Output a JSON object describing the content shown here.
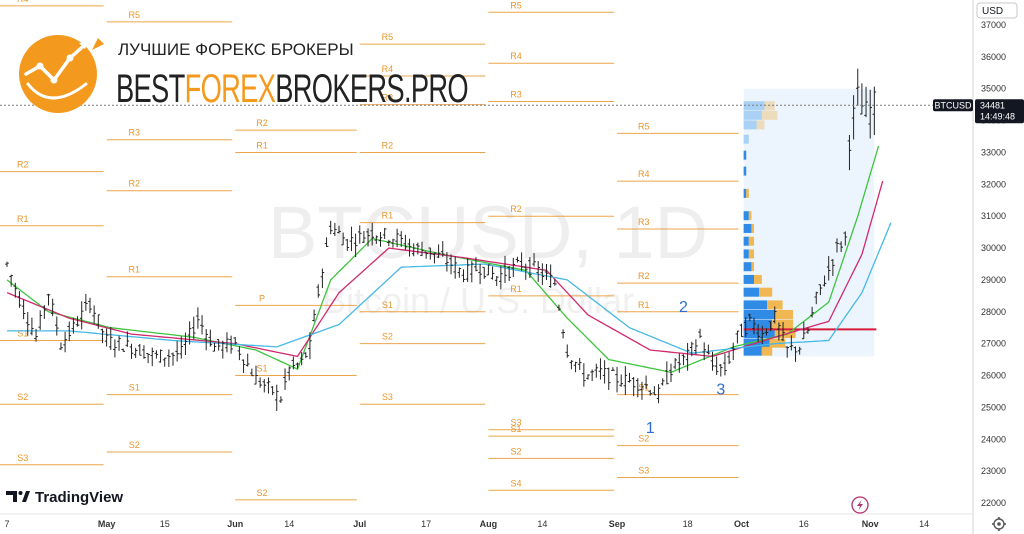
{
  "chart_data": {
    "type": "candlestick",
    "symbol": "BTCUSD",
    "interval": "1D",
    "description": "Bitcoin / U.S. Dollar",
    "currency": "USD",
    "ylim": [
      21500,
      37700
    ],
    "y_ticks": [
      22000,
      23000,
      24000,
      25000,
      26000,
      27000,
      28000,
      29000,
      30000,
      31000,
      32000,
      33000,
      34000,
      35000,
      36000,
      37000
    ],
    "x_labels": [
      {
        "label": "7",
        "day": 0,
        "bold": false
      },
      {
        "label": "May",
        "day": 24,
        "bold": true
      },
      {
        "label": "15",
        "day": 38,
        "bold": false
      },
      {
        "label": "Jun",
        "day": 55,
        "bold": true
      },
      {
        "label": "14",
        "day": 68,
        "bold": false
      },
      {
        "label": "Jul",
        "day": 85,
        "bold": true
      },
      {
        "label": "17",
        "day": 101,
        "bold": false
      },
      {
        "label": "Aug",
        "day": 116,
        "bold": true
      },
      {
        "label": "14",
        "day": 129,
        "bold": false
      },
      {
        "label": "Sep",
        "day": 147,
        "bold": true
      },
      {
        "label": "18",
        "day": 164,
        "bold": false
      },
      {
        "label": "Oct",
        "day": 177,
        "bold": true
      },
      {
        "label": "16",
        "day": 192,
        "bold": false
      },
      {
        "label": "Nov",
        "day": 208,
        "bold": true
      },
      {
        "label": "14",
        "day": 221,
        "bold": false
      }
    ],
    "price_path": [
      [
        0,
        29500
      ],
      [
        3,
        28400
      ],
      [
        7,
        27200
      ],
      [
        10,
        28600
      ],
      [
        13,
        27000
      ],
      [
        16,
        27500
      ],
      [
        20,
        28300
      ],
      [
        24,
        27100
      ],
      [
        30,
        26900
      ],
      [
        36,
        26600
      ],
      [
        42,
        26700
      ],
      [
        46,
        27800
      ],
      [
        50,
        26900
      ],
      [
        55,
        27000
      ],
      [
        60,
        25900
      ],
      [
        63,
        25600
      ],
      [
        66,
        25300
      ],
      [
        68,
        26200
      ],
      [
        71,
        26400
      ],
      [
        73,
        26900
      ],
      [
        75,
        28600
      ],
      [
        78,
        30700
      ],
      [
        82,
        30200
      ],
      [
        88,
        30500
      ],
      [
        94,
        30300
      ],
      [
        98,
        30000
      ],
      [
        102,
        29900
      ],
      [
        106,
        29600
      ],
      [
        110,
        29200
      ],
      [
        114,
        29400
      ],
      [
        118,
        29100
      ],
      [
        124,
        29500
      ],
      [
        128,
        29300
      ],
      [
        132,
        28900
      ],
      [
        135,
        26800
      ],
      [
        139,
        26000
      ],
      [
        143,
        26100
      ],
      [
        147,
        25900
      ],
      [
        151,
        25800
      ],
      [
        154,
        25700
      ],
      [
        157,
        25400
      ],
      [
        160,
        26200
      ],
      [
        164,
        26600
      ],
      [
        167,
        27200
      ],
      [
        170,
        26300
      ],
      [
        173,
        26200
      ],
      [
        176,
        27200
      ],
      [
        179,
        27700
      ],
      [
        182,
        27300
      ],
      [
        185,
        27800
      ],
      [
        188,
        26800
      ],
      [
        191,
        26900
      ],
      [
        193,
        27400
      ],
      [
        195,
        28400
      ],
      [
        198,
        29300
      ],
      [
        200,
        30000
      ],
      [
        202,
        30300
      ],
      [
        203,
        33500
      ],
      [
        205,
        34700
      ],
      [
        207,
        34200
      ],
      [
        209,
        34480
      ]
    ],
    "last_price": "34481",
    "countdown": "14:49:48",
    "wave_labels": [
      {
        "label": "1",
        "day": 155,
        "price": 24200
      },
      {
        "label": "2",
        "day": 163,
        "price": 28000
      },
      {
        "label": "3",
        "day": 172,
        "price": 25400
      }
    ],
    "pivot_labels": [
      "S4",
      "S3",
      "S2",
      "S1",
      "P",
      "R1",
      "R2",
      "R3",
      "R4",
      "R5"
    ],
    "pivots": [
      {
        "from": -2,
        "to": 24,
        "levels": [
          [
            "S3",
            23200
          ],
          [
            "S2",
            25100
          ],
          [
            "S1",
            27100
          ],
          [
            "R1",
            30700
          ],
          [
            "R2",
            32400
          ],
          [
            "R4",
            37600
          ]
        ]
      },
      {
        "from": 24,
        "to": 55,
        "levels": [
          [
            "S2",
            23600
          ],
          [
            "S1",
            25400
          ],
          [
            "R1",
            29100
          ],
          [
            "R2",
            31800
          ],
          [
            "R3",
            33400
          ],
          [
            "R5",
            37100
          ]
        ]
      },
      {
        "from": 55,
        "to": 85,
        "levels": [
          [
            "S2",
            22100
          ],
          [
            "S1",
            26000
          ],
          [
            "P",
            28200
          ],
          [
            "R1",
            33000
          ],
          [
            "R2",
            33700
          ]
        ]
      },
      {
        "from": 85,
        "to": 116,
        "levels": [
          [
            "S3",
            25100
          ],
          [
            "S2",
            27000
          ],
          [
            "S1",
            28000
          ],
          [
            "R1",
            30800
          ],
          [
            "R2",
            33000
          ],
          [
            "R3",
            34500
          ],
          [
            "R4",
            35400
          ],
          [
            "R5",
            36400
          ]
        ]
      },
      {
        "from": 116,
        "to": 147,
        "levels": [
          [
            "S4",
            22400
          ],
          [
            "S2",
            23400
          ],
          [
            "S3",
            24300
          ],
          [
            "S1",
            24100
          ],
          [
            "R1",
            28500
          ],
          [
            "R2",
            31000
          ],
          [
            "R3",
            34600
          ],
          [
            "R4",
            35800
          ],
          [
            "R5",
            37400
          ]
        ]
      },
      {
        "from": 147,
        "to": 177,
        "levels": [
          [
            "S4",
            21600
          ],
          [
            "S3",
            22800
          ],
          [
            "S2",
            23800
          ],
          [
            "S1",
            25400
          ],
          [
            "R1",
            28000
          ],
          [
            "R2",
            28900
          ],
          [
            "R3",
            30600
          ],
          [
            "R4",
            32100
          ],
          [
            "R5",
            33600
          ]
        ]
      }
    ],
    "ma_fast": [
      [
        0,
        29000
      ],
      [
        10,
        28000
      ],
      [
        25,
        27500
      ],
      [
        45,
        27200
      ],
      [
        60,
        26800
      ],
      [
        70,
        26200
      ],
      [
        78,
        29000
      ],
      [
        88,
        30300
      ],
      [
        105,
        29800
      ],
      [
        125,
        29300
      ],
      [
        135,
        27800
      ],
      [
        145,
        26500
      ],
      [
        160,
        26100
      ],
      [
        175,
        26900
      ],
      [
        188,
        27300
      ],
      [
        198,
        28300
      ],
      [
        205,
        31000
      ],
      [
        210,
        33200
      ]
    ],
    "ma_mid": [
      [
        0,
        28600
      ],
      [
        15,
        27800
      ],
      [
        30,
        27300
      ],
      [
        55,
        27000
      ],
      [
        70,
        26600
      ],
      [
        80,
        28600
      ],
      [
        92,
        30000
      ],
      [
        110,
        29700
      ],
      [
        130,
        29300
      ],
      [
        140,
        27900
      ],
      [
        155,
        26800
      ],
      [
        170,
        26600
      ],
      [
        185,
        27200
      ],
      [
        198,
        27700
      ],
      [
        206,
        29800
      ],
      [
        211,
        32100
      ]
    ],
    "ma_slow": [
      [
        0,
        27400
      ],
      [
        15,
        27400
      ],
      [
        40,
        27100
      ],
      [
        65,
        26900
      ],
      [
        80,
        27600
      ],
      [
        95,
        29400
      ],
      [
        115,
        29500
      ],
      [
        135,
        29000
      ],
      [
        150,
        27500
      ],
      [
        165,
        26700
      ],
      [
        185,
        27000
      ],
      [
        198,
        27100
      ],
      [
        206,
        28600
      ],
      [
        213,
        30800
      ]
    ],
    "ma_colors": [
      "#3ec43e",
      "#d02a6e",
      "#47b9e6"
    ],
    "poc_price": 27450,
    "poc_color": "#d81b3a",
    "profile_color_up": "#2f8be6",
    "profile_color_down": "#f2b040",
    "accent": "#e8962c"
  },
  "branding": {
    "logo_line1": "ЛУЧШИЕ ФОРЕКС БРОКЕРЫ",
    "logo_line2_a": "BEST",
    "logo_line2_b": "FOREX",
    "logo_line2_c": "BROKERS.PRO",
    "tradingview": "TradingView"
  },
  "toolbar": {
    "currency_label": "USD",
    "settings_icon": "gear-icon",
    "replay_icon": "lightning-icon"
  }
}
